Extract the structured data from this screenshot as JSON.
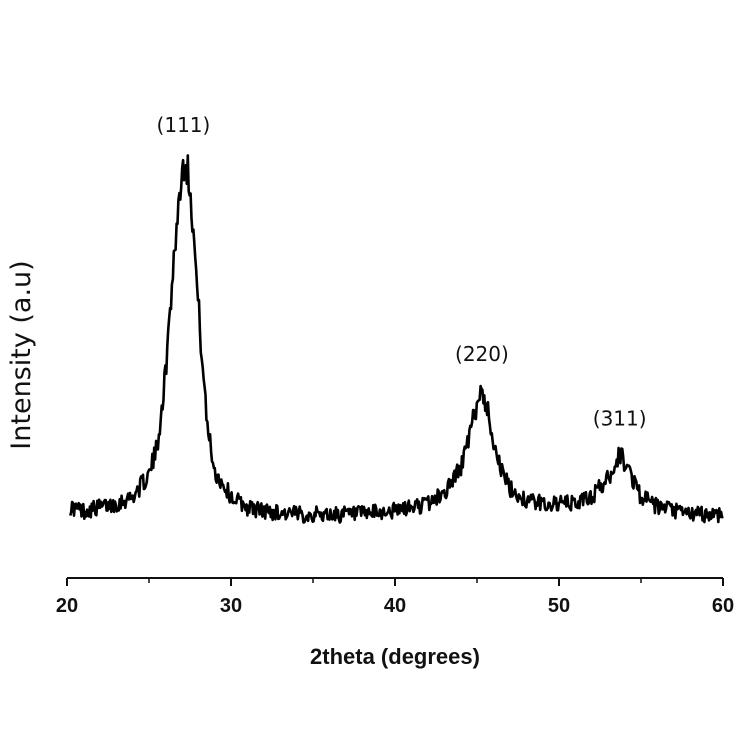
{
  "chart_data": {
    "type": "line",
    "xlabel": "2theta (degrees)",
    "ylabel": "Intensity (a.u)",
    "xlim": [
      20,
      60
    ],
    "x_ticks": [
      "20",
      "30",
      "40",
      "50",
      "60"
    ],
    "y_ticks_shown": false,
    "grid": false,
    "line_color": "#000000",
    "peaks": [
      {
        "label": "(111)",
        "x": 27.1,
        "intensity": 1.0
      },
      {
        "label": "(220)",
        "x": 45.3,
        "intensity": 0.36
      },
      {
        "label": "(311)",
        "x": 53.7,
        "intensity": 0.18
      }
    ],
    "series": [
      {
        "x": [
          20.2,
          21,
          22,
          23,
          24,
          25,
          25.5,
          26,
          26.5,
          27,
          27.2,
          27.5,
          28,
          28.5,
          29,
          30,
          31,
          32,
          34,
          36,
          38,
          40,
          42,
          43,
          44,
          44.5,
          45,
          45.3,
          45.6,
          46,
          46.5,
          47,
          48,
          49,
          50,
          51,
          52,
          53,
          53.7,
          54.3,
          55,
          56,
          57,
          58,
          59,
          60
        ],
        "values": [
          0.03,
          0.02,
          0.03,
          0.04,
          0.06,
          0.12,
          0.2,
          0.4,
          0.72,
          0.97,
          1.0,
          0.94,
          0.6,
          0.28,
          0.13,
          0.06,
          0.03,
          0.02,
          0.01,
          0.01,
          0.01,
          0.02,
          0.04,
          0.07,
          0.14,
          0.22,
          0.32,
          0.36,
          0.31,
          0.22,
          0.13,
          0.08,
          0.05,
          0.04,
          0.04,
          0.04,
          0.06,
          0.11,
          0.18,
          0.13,
          0.06,
          0.03,
          0.02,
          0.01,
          0.01,
          0.01
        ]
      }
    ]
  }
}
